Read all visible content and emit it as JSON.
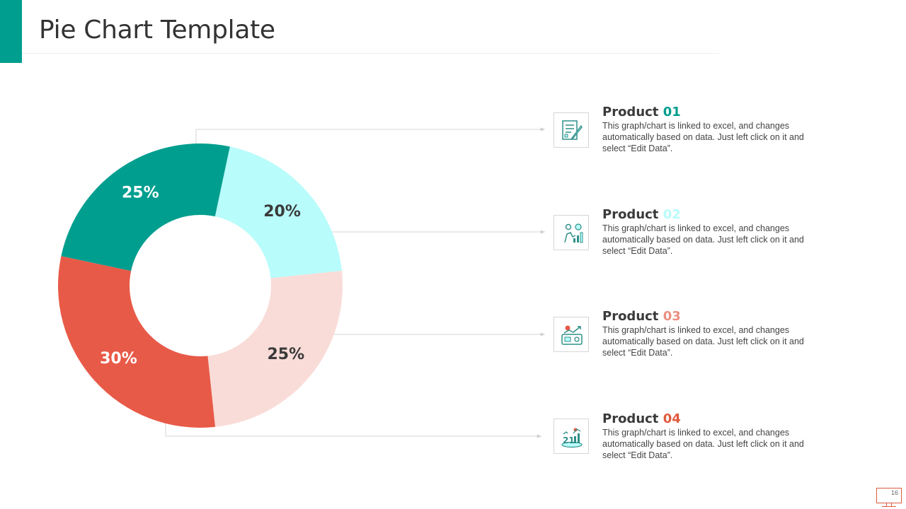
{
  "page": {
    "title": "Pie Chart Template",
    "page_number": "16"
  },
  "colors": {
    "teal": "#009e8f",
    "light_cyan": "#b8fcfb",
    "light_pink": "#f9dcd8",
    "coral": "#e85a48",
    "text_dark": "#333333"
  },
  "chart_data": {
    "type": "pie",
    "variant": "donut",
    "title": "",
    "slices": [
      {
        "label": "20%",
        "value": 20,
        "color": "#b8fcfb",
        "label_color": "#3a3a3a"
      },
      {
        "label": "25%",
        "value": 25,
        "color": "#f9dcd8",
        "label_color": "#3a3a3a"
      },
      {
        "label": "30%",
        "value": 30,
        "color": "#e85a48",
        "label_color": "#ffffff"
      },
      {
        "label": "25%",
        "value": 25,
        "color": "#009e8f",
        "label_color": "#ffffff"
      }
    ]
  },
  "products": [
    {
      "title_word": "Product",
      "number": "01",
      "number_color": "#009e8f",
      "icon": "document-pen-icon",
      "description": "This graph/chart is linked to excel, and changes automatically based on data. Just left click on it and select “Edit Data”."
    },
    {
      "title_word": "Product",
      "number": "02",
      "number_color": "#b8fcfb",
      "icon": "business-growth-icon",
      "description": "This graph/chart is linked to excel, and changes automatically based on data. Just left click on it and select “Edit Data”."
    },
    {
      "title_word": "Product",
      "number": "03",
      "number_color": "#ea8e80",
      "icon": "growth-dashboard-icon",
      "description": "This graph/chart is linked to excel, and changes automatically based on data. Just left click on it and select “Edit Data”."
    },
    {
      "title_word": "Product",
      "number": "04",
      "number_color": "#e05a3e",
      "icon": "stats-podium-icon",
      "description": "This graph/chart is linked to excel, and changes automatically based on data. Just left click on it and select “Edit Data”."
    }
  ]
}
